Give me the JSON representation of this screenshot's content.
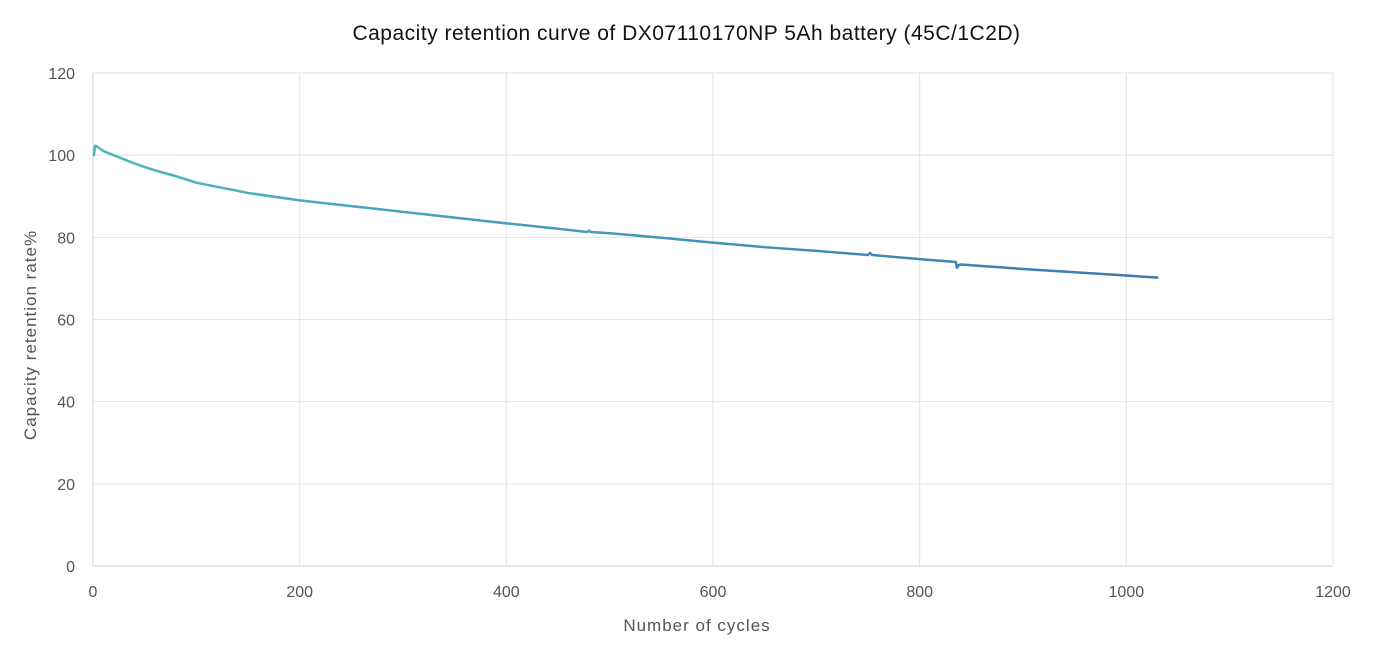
{
  "chart_data": {
    "type": "line",
    "title": "Capacity retention curve of DX07110170NP 5Ah battery (45C/1C2D)",
    "xlabel": "Number of cycles",
    "ylabel": "Capacity retention rate%",
    "xlim": [
      0,
      1200
    ],
    "ylim": [
      0,
      120
    ],
    "x_ticks": [
      0,
      200,
      400,
      600,
      800,
      1000,
      1200
    ],
    "y_ticks": [
      0,
      20,
      40,
      60,
      80,
      100,
      120
    ],
    "x_tick_labels": [
      "0",
      "200",
      "400",
      "600",
      "800",
      "1000",
      "1200"
    ],
    "y_tick_labels": [
      "0",
      "20",
      "40",
      "60",
      "80",
      "100",
      "120"
    ],
    "grid": true,
    "legend": "none",
    "colors": {
      "line_start": "#4db7bd",
      "line_end": "#3d78b0",
      "grid": "#e3e3e3",
      "axis": "#d0d0d0",
      "text": "#555555"
    },
    "series": [
      {
        "x": [
          1,
          2,
          3,
          5,
          10,
          20,
          30,
          40,
          50,
          60,
          80,
          100,
          120,
          150,
          200,
          250,
          300,
          350,
          400,
          450,
          478,
          480,
          482,
          500,
          550,
          600,
          650,
          700,
          750,
          752,
          754,
          800,
          835,
          836,
          838,
          840,
          850,
          900,
          950,
          1000,
          1030
        ],
        "y": [
          100,
          102.3,
          102.2,
          101.9,
          101,
          100,
          99,
          98,
          97.1,
          96.3,
          94.9,
          93.3,
          92.3,
          90.8,
          89.0,
          87.6,
          86.2,
          84.8,
          83.4,
          82.1,
          81.3,
          81.6,
          81.3,
          81.0,
          79.9,
          78.7,
          77.6,
          76.7,
          75.7,
          76.2,
          75.7,
          74.7,
          74.0,
          72.6,
          73.3,
          73.4,
          73.2,
          72.3,
          71.5,
          70.7,
          70.2
        ]
      }
    ]
  }
}
